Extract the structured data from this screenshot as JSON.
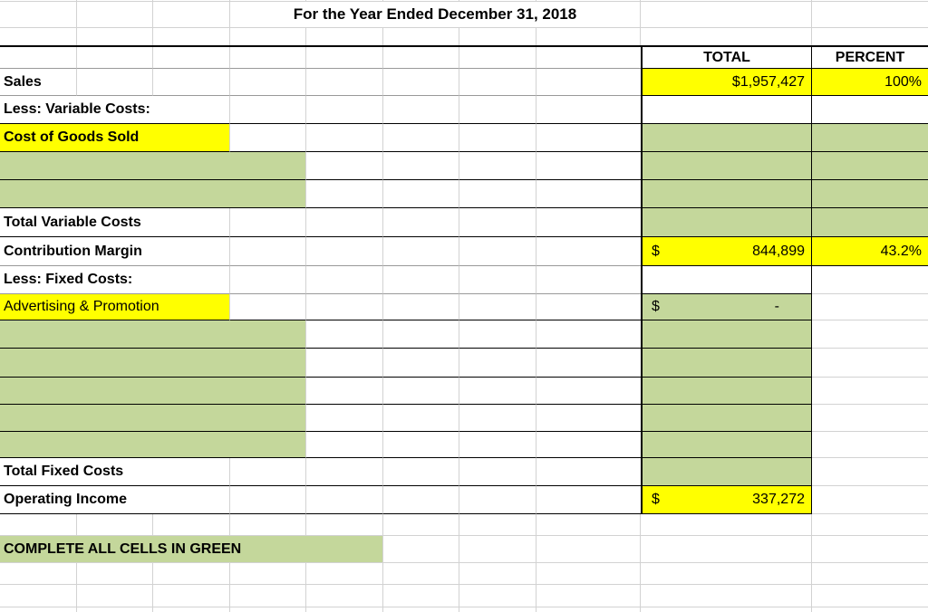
{
  "sheet": {
    "title": "For the Year Ended December 31, 2018"
  },
  "columns": {
    "total": "TOTAL",
    "percent": "PERCENT"
  },
  "rows": {
    "sales": {
      "label": "Sales",
      "total": "$1,957,427",
      "percent": "100%"
    },
    "less_variable": {
      "label": "Less: Variable Costs:"
    },
    "cogs": {
      "label": "Cost of Goods Sold"
    },
    "total_variable": {
      "label": "Total Variable Costs"
    },
    "contribution_margin": {
      "label": "Contribution Margin",
      "currency": "$",
      "total": "844,899",
      "percent": "43.2%"
    },
    "less_fixed": {
      "label": "Less: Fixed Costs:"
    },
    "advertising": {
      "label": "Advertising & Promotion",
      "currency": "$",
      "total": "-"
    },
    "total_fixed": {
      "label": "Total Fixed Costs"
    },
    "operating_income": {
      "label": "Operating Income",
      "currency": "$",
      "total": "337,272"
    },
    "note": {
      "label": "COMPLETE ALL CELLS IN GREEN"
    }
  },
  "colors": {
    "highlight_yellow": "#ffff00",
    "input_green": "#c4d79b"
  }
}
